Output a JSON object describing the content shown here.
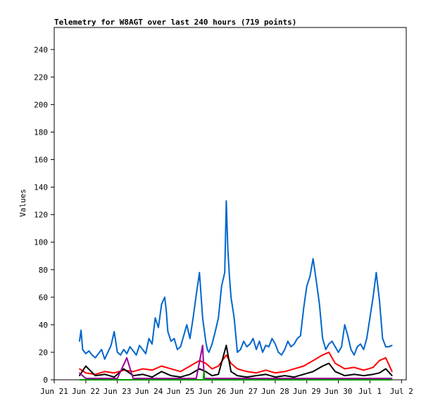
{
  "chart_data": {
    "type": "line",
    "title": "Telemetry for W8AGT over last 240 hours (719 points)",
    "xlabel": "",
    "ylabel": "Values",
    "ylim": [
      0,
      256
    ],
    "yticks": [
      0,
      20,
      40,
      60,
      80,
      100,
      120,
      140,
      160,
      180,
      200,
      220,
      240
    ],
    "x_ticks": [
      "Jun 21",
      "Jun 22",
      "Jun 23",
      "Jun 24",
      "Jun 25",
      "Jun 26",
      "Jun 27",
      "Jun 28",
      "Jun 29",
      "Jun 30",
      "Jul 1",
      "Jul 2"
    ],
    "x_range_days": [
      0,
      11.15
    ],
    "grid": false,
    "legend": "none",
    "series": [
      {
        "color": "#0066cc",
        "x": [
          0.8,
          0.85,
          0.9,
          1.0,
          1.1,
          1.2,
          1.3,
          1.4,
          1.5,
          1.6,
          1.7,
          1.8,
          1.9,
          2.0,
          2.1,
          2.2,
          2.3,
          2.4,
          2.5,
          2.6,
          2.7,
          2.8,
          2.9,
          3.0,
          3.1,
          3.2,
          3.3,
          3.4,
          3.5,
          3.55,
          3.6,
          3.7,
          3.8,
          3.9,
          4.0,
          4.1,
          4.2,
          4.3,
          4.4,
          4.5,
          4.6,
          4.7,
          4.8,
          4.85,
          4.9,
          5.0,
          5.1,
          5.2,
          5.3,
          5.4,
          5.45,
          5.5,
          5.55,
          5.6,
          5.7,
          5.8,
          5.9,
          6.0,
          6.1,
          6.2,
          6.3,
          6.4,
          6.5,
          6.6,
          6.7,
          6.8,
          6.9,
          7.0,
          7.1,
          7.2,
          7.3,
          7.4,
          7.5,
          7.6,
          7.7,
          7.8,
          7.9,
          8.0,
          8.1,
          8.2,
          8.3,
          8.4,
          8.5,
          8.6,
          8.7,
          8.8,
          8.9,
          9.0,
          9.1,
          9.2,
          9.3,
          9.4,
          9.5,
          9.6,
          9.7,
          9.8,
          9.9,
          10.0,
          10.1,
          10.2,
          10.3,
          10.4,
          10.5,
          10.6,
          10.7
        ],
        "y": [
          28,
          36,
          22,
          19,
          21,
          18,
          16,
          19,
          22,
          15,
          20,
          25,
          35,
          20,
          18,
          22,
          19,
          24,
          21,
          18,
          25,
          22,
          19,
          30,
          26,
          45,
          38,
          55,
          60,
          50,
          35,
          28,
          30,
          22,
          24,
          32,
          40,
          30,
          45,
          62,
          78,
          45,
          28,
          22,
          20,
          26,
          35,
          45,
          68,
          78,
          130,
          95,
          75,
          60,
          45,
          20,
          22,
          28,
          24,
          26,
          30,
          22,
          28,
          20,
          25,
          24,
          30,
          26,
          20,
          18,
          22,
          28,
          24,
          26,
          30,
          32,
          52,
          68,
          75,
          88,
          72,
          55,
          30,
          22,
          26,
          28,
          24,
          20,
          24,
          40,
          32,
          22,
          18,
          24,
          26,
          22,
          30,
          45,
          60,
          78,
          58,
          30,
          24,
          24,
          25
        ]
      },
      {
        "color": "#ff0000",
        "x": [
          0.8,
          1.0,
          1.3,
          1.6,
          1.9,
          2.2,
          2.5,
          2.8,
          3.1,
          3.4,
          3.7,
          4.0,
          4.3,
          4.6,
          4.8,
          5.0,
          5.2,
          5.45,
          5.6,
          5.8,
          6.1,
          6.4,
          6.7,
          7.0,
          7.3,
          7.6,
          7.9,
          8.2,
          8.5,
          8.7,
          8.9,
          9.2,
          9.5,
          9.8,
          10.1,
          10.3,
          10.5,
          10.7
        ],
        "y": [
          8,
          5,
          4,
          6,
          5,
          7,
          6,
          8,
          7,
          10,
          8,
          6,
          10,
          14,
          12,
          8,
          10,
          18,
          12,
          8,
          6,
          5,
          7,
          5,
          6,
          8,
          10,
          14,
          18,
          20,
          12,
          8,
          9,
          7,
          9,
          14,
          16,
          6
        ]
      },
      {
        "color": "#000000",
        "x": [
          0.8,
          1.0,
          1.3,
          1.6,
          1.9,
          2.2,
          2.5,
          2.8,
          3.1,
          3.4,
          3.7,
          4.0,
          4.3,
          4.6,
          4.8,
          5.0,
          5.2,
          5.45,
          5.6,
          5.8,
          6.1,
          6.4,
          6.7,
          7.0,
          7.3,
          7.6,
          7.9,
          8.2,
          8.5,
          8.7,
          8.9,
          9.2,
          9.5,
          9.8,
          10.1,
          10.3,
          10.5,
          10.7
        ],
        "y": [
          3,
          10,
          3,
          4,
          2,
          8,
          3,
          4,
          2,
          6,
          3,
          2,
          4,
          8,
          6,
          3,
          4,
          25,
          6,
          3,
          2,
          3,
          4,
          2,
          3,
          2,
          4,
          6,
          10,
          12,
          6,
          3,
          4,
          3,
          4,
          5,
          8,
          3
        ]
      },
      {
        "color": "#990099",
        "x": [
          0.8,
          1.0,
          1.5,
          2.0,
          2.3,
          2.5,
          3.0,
          3.5,
          4.0,
          4.5,
          4.7,
          4.75,
          4.8,
          5.0,
          5.5,
          6.0,
          6.5,
          7.0,
          7.5,
          8.0,
          8.5,
          9.0,
          9.5,
          10.0,
          10.5,
          10.7
        ],
        "y": [
          5,
          1,
          1,
          1,
          16,
          1,
          1,
          1,
          1,
          1,
          25,
          1,
          1,
          1,
          1,
          1,
          1,
          1,
          1,
          1,
          1,
          1,
          1,
          1,
          1,
          1
        ]
      },
      {
        "color": "#009900",
        "x": [
          0.8,
          2.0,
          4.0,
          4.72,
          4.74,
          4.76,
          6.0,
          8.0,
          10.0,
          10.7
        ],
        "y": [
          0,
          0,
          0,
          0,
          6,
          0,
          0,
          0,
          0,
          0
        ]
      }
    ]
  }
}
